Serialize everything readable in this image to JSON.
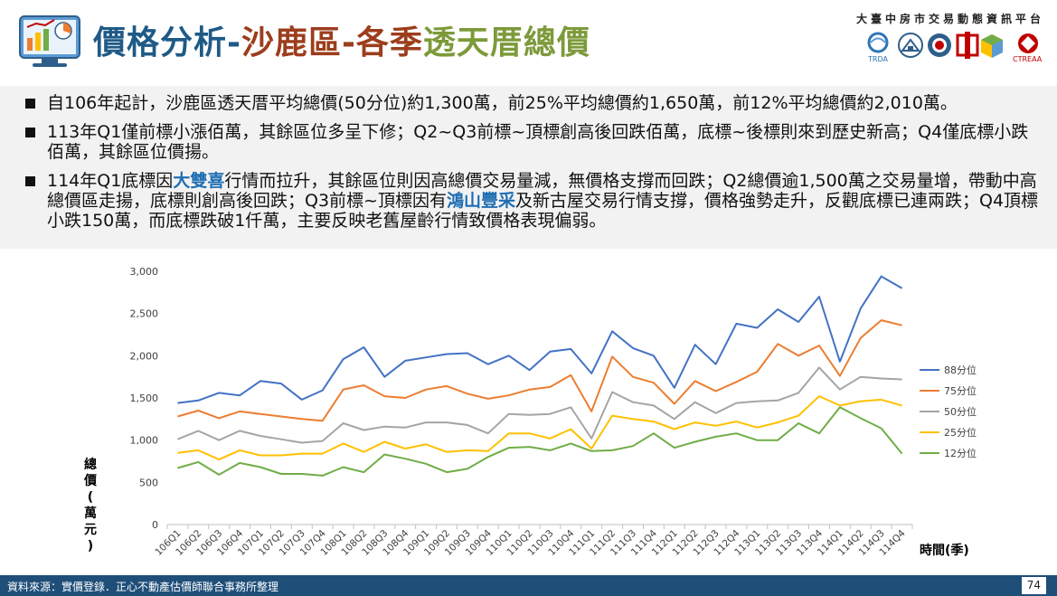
{
  "header": {
    "title_part1": "價格分析-",
    "title_part2": "沙鹿區-各季",
    "title_part3": "透天厝總價",
    "platform": "大臺中房市交易動態資訊平台",
    "logo_texts": [
      "TRDA",
      "CTREAA"
    ]
  },
  "bullets": [
    {
      "text": "自106年起計，沙鹿區透天厝平均總價(50分位)約1,300萬，前25%平均總價約1,650萬，前12%平均總價約2,010萬。"
    },
    {
      "text": "113年Q1僅前標小漲佰萬，其餘區位多呈下修；Q2~Q3前標~頂標創高後回跌佰萬，底標~後標則來到歷史新高；Q4僅底標小跌佰萬，其餘區位價揚。"
    },
    {
      "pre": "114年Q1底標因",
      "hl1": "大雙喜",
      "mid": "行情而拉升，其餘區位則因高總價交易量減，無價格支撐而回跌；Q2總價逾1,500萬之交易量增，帶動中高總價區走揚，底標則創高後回跌；Q3前標~頂標因有",
      "hl2": "鴻山豐采",
      "post": "及新古屋交易行情支撐，價格強勢走升，反觀底標已連兩跌；Q4頂標小跌150萬，而底標跌破1仟萬，主要反映老舊屋齡行情致價格表現偏弱。"
    }
  ],
  "chart_data": {
    "type": "line",
    "ylabel": "總價(萬元)",
    "xlabel": "時間(季)",
    "ylim": [
      0,
      3000
    ],
    "yticks": [
      0,
      500,
      1000,
      1500,
      2000,
      2500,
      3000
    ],
    "ytick_labels": [
      "0",
      "500",
      "1,000",
      "1,500",
      "2,000",
      "2,500",
      "3,000"
    ],
    "grid": false,
    "legend_position": "right",
    "categories": [
      "106Q1",
      "106Q2",
      "106Q3",
      "106Q4",
      "107Q1",
      "107Q2",
      "107Q3",
      "107Q4",
      "108Q1",
      "108Q2",
      "108Q3",
      "108Q4",
      "109Q1",
      "109Q2",
      "109Q3",
      "109Q4",
      "110Q1",
      "110Q2",
      "110Q3",
      "110Q4",
      "111Q1",
      "111Q2",
      "111Q3",
      "111Q4",
      "112Q1",
      "112Q2",
      "112Q3",
      "112Q4",
      "113Q1",
      "113Q2",
      "113Q3",
      "113Q4",
      "114Q1",
      "114Q2",
      "114Q3",
      "114Q4"
    ],
    "series": [
      {
        "name": "88分位",
        "color": "#4472c4",
        "values": [
          1440,
          1470,
          1560,
          1530,
          1700,
          1670,
          1480,
          1590,
          1960,
          2100,
          1750,
          1940,
          1980,
          2020,
          2030,
          1900,
          2000,
          1830,
          2050,
          2080,
          1790,
          2290,
          2090,
          2000,
          1620,
          2130,
          1900,
          2380,
          2330,
          2550,
          2400,
          2700,
          1930,
          2560,
          2940,
          2800
        ]
      },
      {
        "name": "75分位",
        "color": "#ed7d31",
        "values": [
          1280,
          1350,
          1260,
          1340,
          1310,
          1280,
          1250,
          1230,
          1600,
          1650,
          1520,
          1500,
          1600,
          1640,
          1550,
          1490,
          1530,
          1600,
          1630,
          1770,
          1340,
          1990,
          1750,
          1680,
          1430,
          1700,
          1580,
          1690,
          1810,
          2140,
          2000,
          2120,
          1760,
          2210,
          2420,
          2360
        ]
      },
      {
        "name": "50分位",
        "color": "#a5a5a5",
        "values": [
          1010,
          1110,
          1000,
          1110,
          1050,
          1010,
          970,
          990,
          1200,
          1120,
          1160,
          1150,
          1210,
          1210,
          1180,
          1080,
          1310,
          1300,
          1310,
          1390,
          1020,
          1570,
          1450,
          1410,
          1250,
          1450,
          1320,
          1440,
          1460,
          1470,
          1560,
          1860,
          1600,
          1750,
          1730,
          1720
        ]
      },
      {
        "name": "25分位",
        "color": "#ffc000",
        "values": [
          850,
          880,
          770,
          880,
          820,
          820,
          840,
          840,
          960,
          860,
          980,
          900,
          950,
          860,
          880,
          870,
          1080,
          1080,
          1020,
          1130,
          900,
          1290,
          1250,
          1220,
          1130,
          1210,
          1170,
          1220,
          1150,
          1210,
          1290,
          1520,
          1410,
          1460,
          1480,
          1410
        ]
      },
      {
        "name": "12分位",
        "color": "#70ad47",
        "values": [
          670,
          740,
          590,
          730,
          680,
          600,
          600,
          580,
          680,
          620,
          830,
          780,
          720,
          620,
          660,
          800,
          910,
          920,
          880,
          960,
          870,
          880,
          930,
          1080,
          910,
          980,
          1040,
          1080,
          1000,
          1000,
          1200,
          1080,
          1390,
          1260,
          1140,
          840
        ]
      }
    ]
  },
  "footer": {
    "source": "資料來源：實價登錄．正心不動產估價師聯合事務所整理",
    "page": "74"
  }
}
